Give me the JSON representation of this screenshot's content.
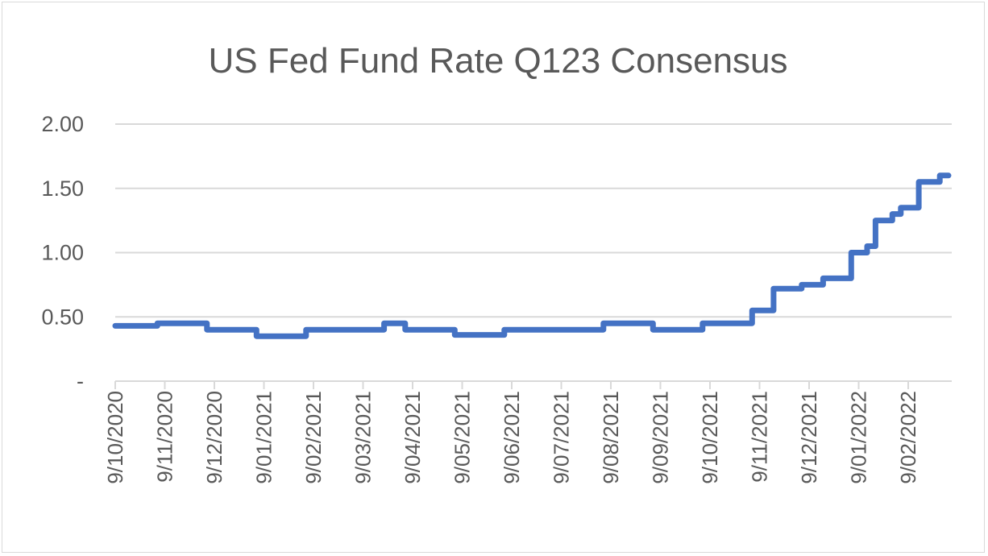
{
  "chart_data": {
    "type": "line",
    "title": "US Fed Fund Rate Q123 Consensus",
    "xlabel": "",
    "ylabel": "",
    "ylim": [
      0,
      2
    ],
    "y_ticks": [
      {
        "value": 0,
        "label": "-"
      },
      {
        "value": 0.5,
        "label": "0.50"
      },
      {
        "value": 1,
        "label": "1.00"
      },
      {
        "value": 1.5,
        "label": "1.50"
      },
      {
        "value": 2,
        "label": "2.00"
      }
    ],
    "x_ticks": [
      "9/10/2020",
      "9/11/2020",
      "9/12/2020",
      "9/01/2021",
      "9/02/2021",
      "9/03/2021",
      "9/04/2021",
      "9/05/2021",
      "9/06/2021",
      "9/07/2021",
      "9/08/2021",
      "9/09/2021",
      "9/10/2021",
      "9/11/2021",
      "9/12/2021",
      "9/01/2022",
      "9/02/2022"
    ],
    "grid": true,
    "legend": "none",
    "series": [
      {
        "color": "#4472c4",
        "x": [
          "9/10/2020",
          "9/10/2020",
          "9/11/2020",
          "9/11/2020",
          "9/12/2020",
          "9/12/2020",
          "9/01/2021",
          "9/01/2021",
          "9/02/2021",
          "9/03/2021",
          "9/03/2021",
          "9/03/2021",
          "9/04/2021",
          "9/04/2021",
          "9/05/2021",
          "9/05/2021",
          "9/06/2021",
          "9/07/2021",
          "9/07/2021",
          "9/08/2021",
          "9/08/2021",
          "9/09/2021",
          "9/09/2021",
          "9/10/2021",
          "9/10/2021",
          "9/11/2021",
          "9/11/2021",
          "9/11/2021",
          "9/11/2021",
          "9/12/2021",
          "9/12/2021",
          "9/12/2021",
          "9/12/2021",
          "9/01/2022",
          "9/01/2022",
          "9/01/2022",
          "9/01/2022",
          "9/01/2022",
          "9/01/2022",
          "9/02/2022",
          "9/02/2022",
          "9/02/2022",
          "9/02/2022",
          "9/02/2022"
        ],
        "values": [
          0.43,
          0.45,
          0.45,
          0.4,
          0.4,
          0.35,
          0.35,
          0.4,
          0.4,
          0.4,
          0.45,
          0.4,
          0.4,
          0.36,
          0.36,
          0.4,
          0.4,
          0.4,
          0.45,
          0.45,
          0.4,
          0.4,
          0.45,
          0.45,
          0.55,
          0.55,
          0.72,
          0.72,
          0.75,
          0.75,
          0.8,
          0.8,
          1.0,
          1.0,
          1.05,
          1.25,
          1.25,
          1.3,
          1.35,
          1.35,
          1.55,
          1.55,
          1.6,
          1.6
        ]
      }
    ]
  }
}
